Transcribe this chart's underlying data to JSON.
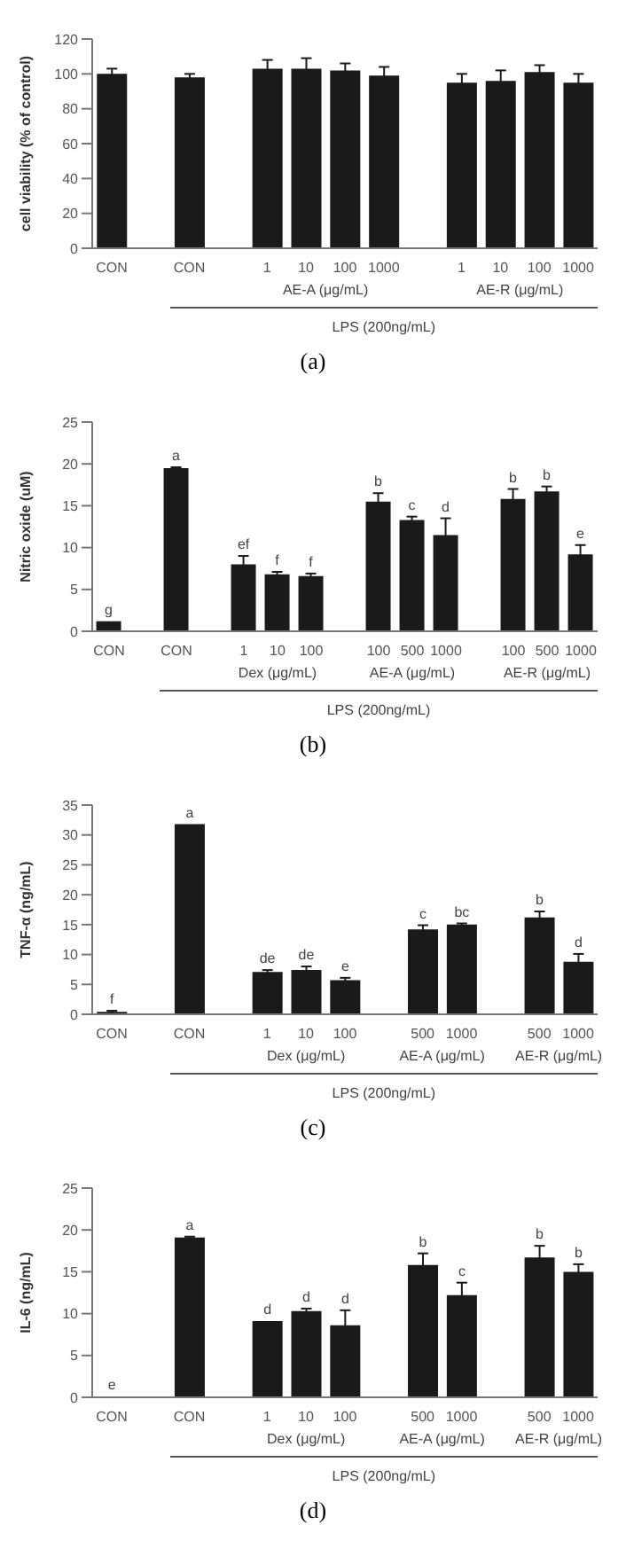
{
  "chart_data": [
    {
      "type": "bar",
      "ylabel": "cell viability (% of control)",
      "color": "#1a1a1a",
      "ylim": [
        0,
        120
      ],
      "yticks": [
        0,
        20,
        40,
        60,
        80,
        100,
        120
      ],
      "categories": [
        "CON",
        null,
        "CON",
        null,
        "1",
        "10",
        "100",
        "1000",
        null,
        "1",
        "10",
        "100",
        "1000"
      ],
      "values": [
        100,
        null,
        98,
        null,
        103,
        103,
        102,
        99,
        null,
        95,
        96,
        101,
        95
      ],
      "errors": [
        3,
        null,
        2,
        null,
        5,
        6,
        4,
        5,
        null,
        5,
        6,
        4,
        5
      ],
      "annotations": [
        "AE-A (μg/mL)",
        "AE-R (μg/mL)",
        "LPS (200ng/mL)",
        "(a)"
      ]
    },
    {
      "type": "bar",
      "ylabel": "Nitric oxide (uM)",
      "color": "#1a1a1a",
      "ylim": [
        0,
        25
      ],
      "yticks": [
        0,
        5,
        10,
        15,
        20,
        25
      ],
      "categories": [
        "CON",
        null,
        "CON",
        null,
        "1",
        "10",
        "100",
        null,
        "100",
        "500",
        "1000",
        null,
        "100",
        "500",
        "1000"
      ],
      "values": [
        1.2,
        null,
        19.5,
        null,
        8,
        6.8,
        6.6,
        null,
        15.5,
        13.3,
        11.5,
        null,
        15.8,
        16.7,
        9.2
      ],
      "errors": [
        null,
        null,
        0.1,
        null,
        1,
        0.3,
        0.3,
        null,
        1,
        0.4,
        2,
        null,
        1.2,
        0.6,
        1.1
      ],
      "value_labels": [
        "g",
        null,
        "a",
        null,
        "ef",
        "f",
        "f",
        null,
        "b",
        "c",
        "d",
        null,
        "b",
        "b",
        "e"
      ],
      "annotations": [
        "Dex (μg/mL)",
        "AE-A (μg/mL)",
        "AE-R (μg/mL)",
        "LPS (200ng/mL)",
        "(b)"
      ]
    },
    {
      "type": "bar",
      "ylabel": "TNF-α (ng/mL)",
      "color": "#1a1a1a",
      "ylim": [
        0,
        35
      ],
      "yticks": [
        0,
        5,
        10,
        15,
        20,
        25,
        30,
        35
      ],
      "categories": [
        "CON",
        null,
        "CON",
        null,
        "1",
        "10",
        "100",
        null,
        "500",
        "1000",
        null,
        "500",
        "1000"
      ],
      "values": [
        0.4,
        null,
        31.8,
        null,
        7.1,
        7.4,
        5.7,
        null,
        14.2,
        15,
        null,
        16.2,
        8.8
      ],
      "errors": [
        0.2,
        null,
        null,
        null,
        0.3,
        0.6,
        0.4,
        null,
        0.7,
        0.2,
        null,
        1,
        1.3
      ],
      "value_labels": [
        "f",
        null,
        "a",
        null,
        "de",
        "de",
        "e",
        null,
        "c",
        "bc",
        null,
        "b",
        "d"
      ],
      "annotations": [
        "Dex (μg/mL)",
        "AE-A (μg/mL)",
        "AE-R (μg/mL)",
        "LPS (200ng/mL)",
        "(c)"
      ]
    },
    {
      "type": "bar",
      "ylabel": "IL-6 (ng/mL)",
      "color": "#1a1a1a",
      "ylim": [
        0,
        25
      ],
      "yticks": [
        0,
        5,
        10,
        15,
        20,
        25
      ],
      "categories": [
        "CON",
        null,
        "CON",
        null,
        "1",
        "10",
        "100",
        null,
        "500",
        "1000",
        null,
        "500",
        "1000"
      ],
      "values": [
        0.1,
        null,
        19.1,
        null,
        9.1,
        10.3,
        8.6,
        null,
        15.8,
        12.2,
        null,
        16.7,
        15
      ],
      "errors": [
        null,
        null,
        0.1,
        null,
        null,
        0.3,
        1.8,
        null,
        1.4,
        1.5,
        null,
        1.4,
        0.9
      ],
      "value_labels": [
        "e",
        null,
        "a",
        null,
        "d",
        "d",
        "d",
        null,
        "b",
        "c",
        null,
        "b",
        "b"
      ],
      "annotations": [
        "Dex (μg/mL)",
        "AE-A (μg/mL)",
        "AE-R (μg/mL)",
        "LPS (200ng/mL)",
        "(d)"
      ]
    }
  ]
}
